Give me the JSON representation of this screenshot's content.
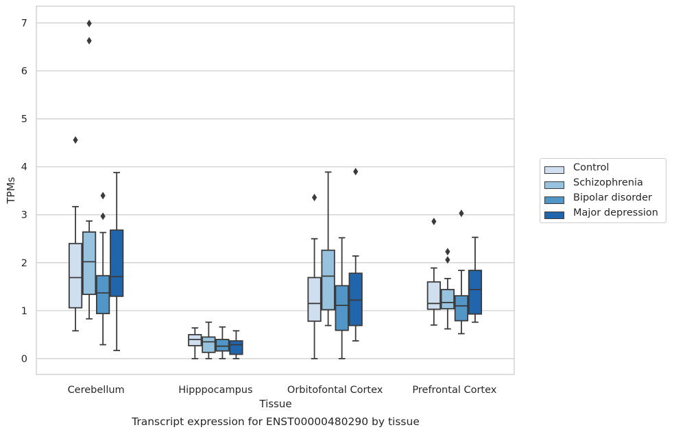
{
  "chart_data": {
    "type": "box",
    "xlabel": "Tissue",
    "ylabel": "TPMs",
    "ylim": [
      -0.33,
      7.35
    ],
    "yticks": [
      0,
      1,
      2,
      3,
      4,
      5,
      6,
      7
    ],
    "categories": [
      "Cerebellum",
      "Hipppocampus",
      "Orbitofontal Cortex",
      "Prefrontal Cortex"
    ],
    "grid": "horizontal",
    "legend_position": "right",
    "series": [
      {
        "name": "Control",
        "color": "#d0dff0",
        "boxes": [
          {
            "whisker_low": 0.58,
            "q1": 1.06,
            "median": 1.69,
            "q3": 2.4,
            "whisker_high": 3.17,
            "outliers": [
              4.56
            ]
          },
          {
            "whisker_low": 0.0,
            "q1": 0.27,
            "median": 0.4,
            "q3": 0.5,
            "whisker_high": 0.64,
            "outliers": []
          },
          {
            "whisker_low": 0.0,
            "q1": 0.78,
            "median": 1.15,
            "q3": 1.69,
            "whisker_high": 2.5,
            "outliers": [
              3.36
            ]
          },
          {
            "whisker_low": 0.7,
            "q1": 1.03,
            "median": 1.15,
            "q3": 1.6,
            "whisker_high": 1.89,
            "outliers": [
              2.86
            ]
          }
        ]
      },
      {
        "name": "Schizophrenia",
        "color": "#98c3de",
        "boxes": [
          {
            "whisker_low": 0.83,
            "q1": 1.34,
            "median": 2.02,
            "q3": 2.64,
            "whisker_high": 2.87,
            "outliers": [
              6.63,
              6.99
            ]
          },
          {
            "whisker_low": 0.0,
            "q1": 0.13,
            "median": 0.35,
            "q3": 0.45,
            "whisker_high": 0.76,
            "outliers": []
          },
          {
            "whisker_low": 0.69,
            "q1": 1.02,
            "median": 1.72,
            "q3": 2.26,
            "whisker_high": 3.89,
            "outliers": []
          },
          {
            "whisker_low": 0.62,
            "q1": 1.04,
            "median": 1.17,
            "q3": 1.44,
            "whisker_high": 1.67,
            "outliers": [
              2.06,
              2.23
            ]
          }
        ]
      },
      {
        "name": "Bipolar disorder",
        "color": "#5196c7",
        "boxes": [
          {
            "whisker_low": 0.29,
            "q1": 0.94,
            "median": 1.37,
            "q3": 1.73,
            "whisker_high": 2.63,
            "outliers": [
              2.97,
              3.4
            ]
          },
          {
            "whisker_low": 0.0,
            "q1": 0.16,
            "median": 0.26,
            "q3": 0.4,
            "whisker_high": 0.66,
            "outliers": []
          },
          {
            "whisker_low": 0.0,
            "q1": 0.59,
            "median": 1.11,
            "q3": 1.52,
            "whisker_high": 2.52,
            "outliers": []
          },
          {
            "whisker_low": 0.52,
            "q1": 0.79,
            "median": 1.1,
            "q3": 1.31,
            "whisker_high": 1.84,
            "outliers": [
              3.03
            ]
          }
        ]
      },
      {
        "name": "Major depression",
        "color": "#2166ac",
        "boxes": [
          {
            "whisker_low": 0.17,
            "q1": 1.3,
            "median": 1.71,
            "q3": 2.68,
            "whisker_high": 3.88,
            "outliers": []
          },
          {
            "whisker_low": 0.0,
            "q1": 0.09,
            "median": 0.29,
            "q3": 0.37,
            "whisker_high": 0.58,
            "outliers": []
          },
          {
            "whisker_low": 0.37,
            "q1": 0.69,
            "median": 1.22,
            "q3": 1.78,
            "whisker_high": 2.14,
            "outliers": [
              3.9
            ]
          },
          {
            "whisker_low": 0.76,
            "q1": 0.93,
            "median": 1.44,
            "q3": 1.84,
            "whisker_high": 2.53,
            "outliers": []
          }
        ]
      }
    ]
  },
  "caption": "Transcript expression for ENST00000480290 by tissue",
  "legend": {
    "items": [
      "Control",
      "Schizophrenia",
      "Bipolar disorder",
      "Major depression"
    ],
    "colors": [
      "#d0dff0",
      "#98c3de",
      "#5196c7",
      "#2166ac"
    ]
  }
}
